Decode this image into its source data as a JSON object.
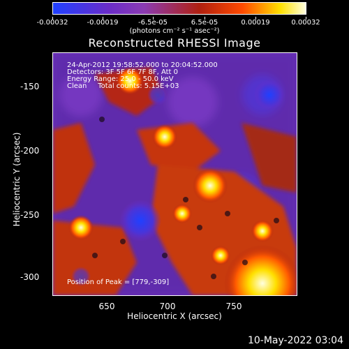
{
  "colorbar": {
    "labels": [
      "-0.00032",
      "-0.00019",
      "-6.5e-05",
      "6.5e-05",
      "0.00019",
      "0.00032"
    ],
    "unit": "(photons cm⁻² s⁻¹ asec⁻²)",
    "colors": [
      "#2040ff",
      "#6a2cc8",
      "#8b3bb2",
      "#b02010",
      "#ff4a00",
      "#ffff00"
    ]
  },
  "title": "Reconstructed RHESSI Image",
  "overlay": {
    "line1": "24-Apr-2012 19:58:52.000 to 20:04:52.000",
    "line2": "Detectors: 3F 5F 6F 7F 8F, Att 0",
    "line3": "Energy Range: 25.0 - 50.0 keV",
    "line4": "Clean     Total counts: 5.15E+03",
    "peak": "Position of Peak = [779,-309]"
  },
  "axes": {
    "xlabel": "Heliocentric X (arcsec)",
    "ylabel": "Heliocentric Y (arcsec)",
    "xticks": [
      "650",
      "700",
      "750"
    ],
    "yticks": [
      "-150",
      "-200",
      "-250",
      "-300"
    ]
  },
  "footer": "10-May-2022 03:04"
}
